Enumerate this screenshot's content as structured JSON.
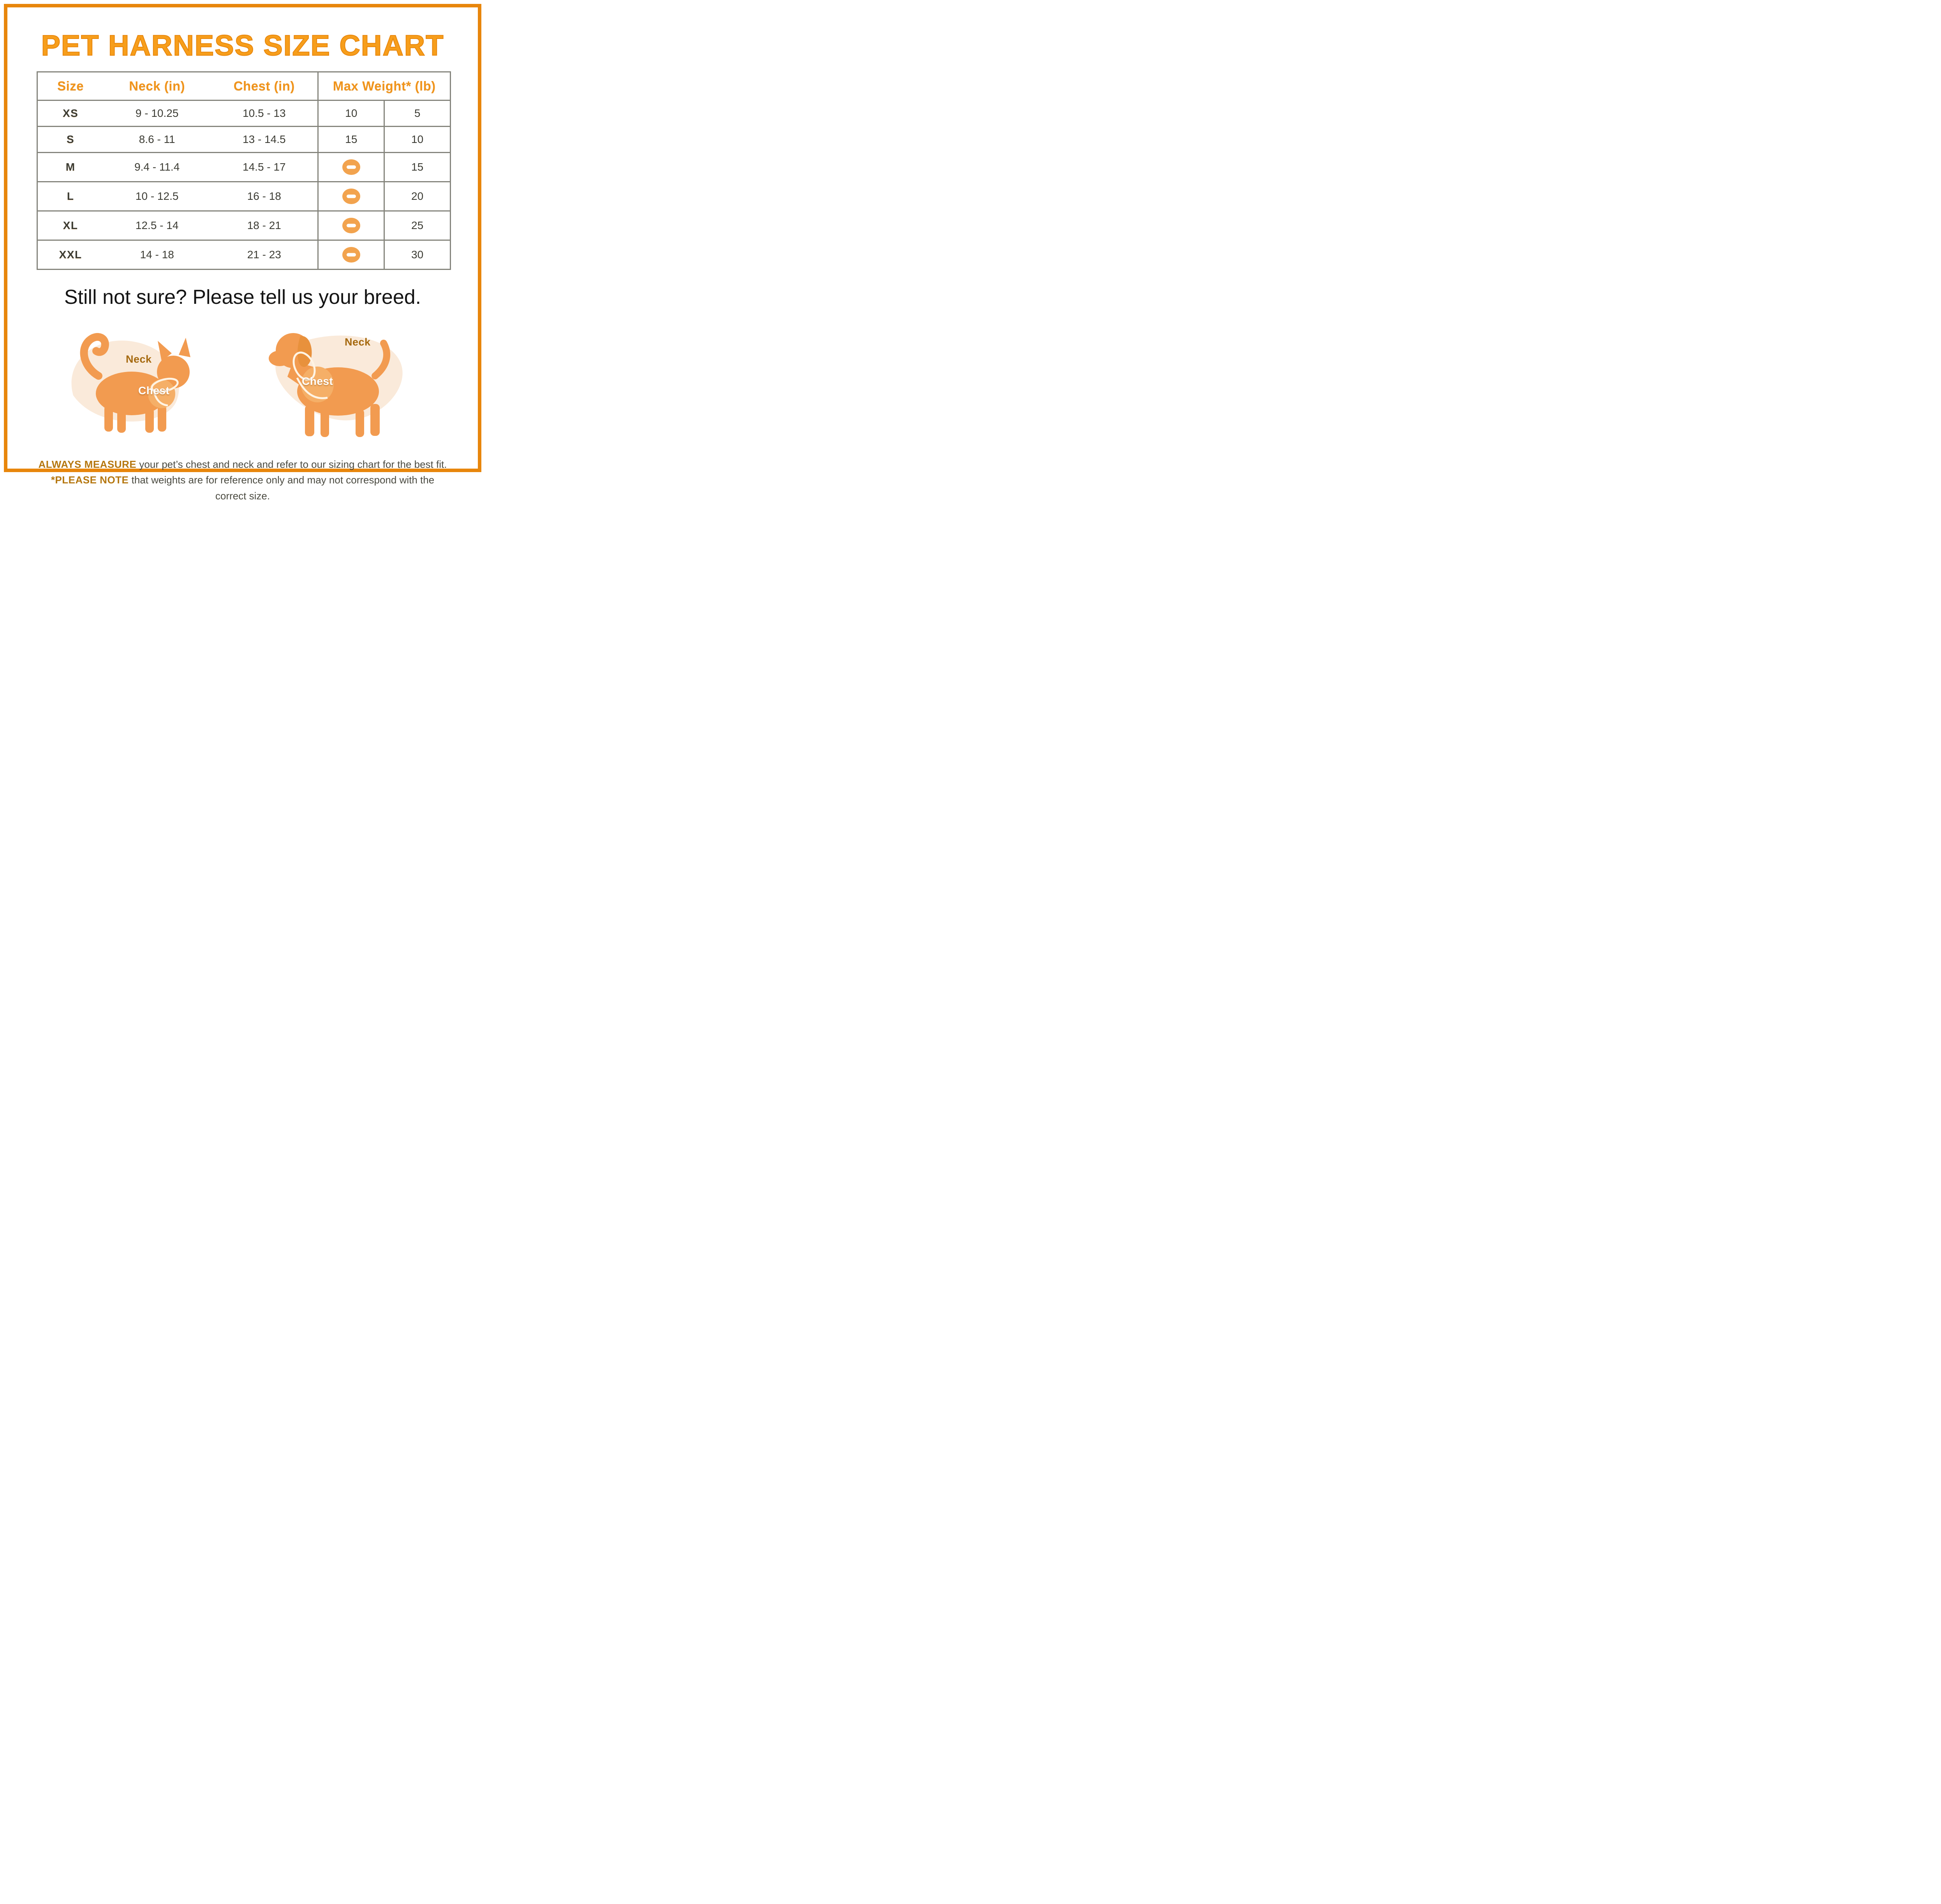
{
  "page": {
    "title": "PET HARNESS SIZE CHART",
    "subtitle": "Still not sure? Please tell us your breed."
  },
  "table": {
    "headers": [
      "Size",
      "Neck (in)",
      "Chest (in)",
      "Max Weight* (lb)"
    ],
    "rows": [
      [
        "XS",
        "9 - 10.25",
        "10.5 - 13",
        "10",
        "5"
      ],
      [
        "S",
        "8.6 - 11",
        "13 - 14.5",
        "15",
        "10"
      ],
      [
        "M",
        "9.4 - 11.4",
        "14.5 - 17",
        "minus-icon",
        "15"
      ],
      [
        "L",
        "10 - 12.5",
        "16 - 18",
        "minus-icon",
        "20"
      ],
      [
        "XL",
        "12.5 - 14",
        "18 - 21",
        "minus-icon",
        "25"
      ],
      [
        "XXL",
        "14 - 18",
        "21 - 23",
        "minus-icon",
        "30"
      ]
    ]
  },
  "diagrams": {
    "cat": {
      "neck_label": "Neck",
      "chest_label": "Chest"
    },
    "dog": {
      "neck_label": "Neck",
      "chest_label": "Chest"
    }
  },
  "footnotes": {
    "line1_bold": "ALWAYS MEASURE",
    "line1_rest": " your pet’s chest and neck and refer to our sizing chart for the best fit.",
    "line2_bold": "*PLEASE NOTE",
    "line2_rest": " that weights are for reference only and may not correspond with the correct size."
  },
  "icons": {
    "dash_cell": "minus-icon"
  },
  "colors": {
    "frame_orange": "#E8860C",
    "title_orange": "#F79E1B",
    "header_text_orange": "#F0941C",
    "silhouette_orange": "#F29B50",
    "harness_light_orange": "#F5AF67",
    "blob_peach": "#FAEADA",
    "table_border_gray": "#84847C",
    "text_dark": "#3C3C34",
    "note_brown": "#B5770F",
    "dash_icon_orange": "#F2A34E"
  },
  "chart_data": {
    "type": "table",
    "title": "PET HARNESS SIZE CHART",
    "columns": [
      "Size",
      "Neck (in)",
      "Chest (in)",
      "Max Weight* (lb) - subcolumn 1",
      "Max Weight* (lb) - subcolumn 2"
    ],
    "rows": [
      [
        "XS",
        "9 - 10.25",
        "10.5 - 13",
        10,
        5
      ],
      [
        "S",
        "8.6 - 11",
        "13 - 14.5",
        15,
        10
      ],
      [
        "M",
        "9.4 - 11.4",
        "14.5 - 17",
        null,
        15
      ],
      [
        "L",
        "10 - 12.5",
        "16 - 18",
        null,
        20
      ],
      [
        "XL",
        "12.5 - 14",
        "18 - 21",
        null,
        25
      ],
      [
        "XXL",
        "14 - 18",
        "21 - 23",
        null,
        30
      ]
    ],
    "notes": "null cells are rendered as an orange circle with a white minus (no value)"
  }
}
